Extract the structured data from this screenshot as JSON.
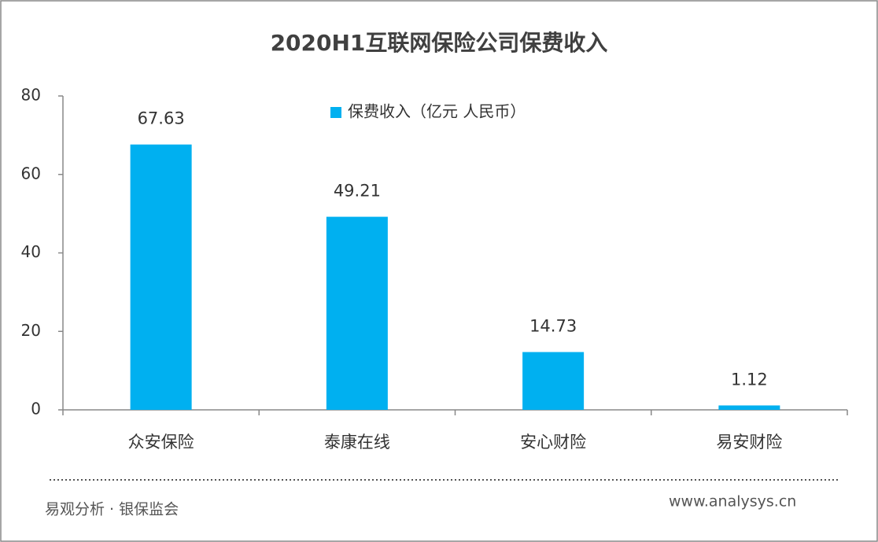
{
  "chart_data": {
    "type": "bar",
    "title": "2020H1互联网保险公司保费收入",
    "categories": [
      "众安保险",
      "泰康在线",
      "安心财险",
      "易安财险"
    ],
    "series": [
      {
        "name": "保费收入（亿元 人民币）",
        "color": "#00b0f0",
        "values": [
          67.63,
          49.21,
          14.73,
          1.12
        ]
      }
    ],
    "ylim": [
      0,
      80
    ],
    "yticks": [
      0,
      20,
      40,
      60,
      80
    ],
    "legend": "top"
  },
  "footer": {
    "source": "易观分析 · 银保监会",
    "website": "www.analysys.cn"
  }
}
